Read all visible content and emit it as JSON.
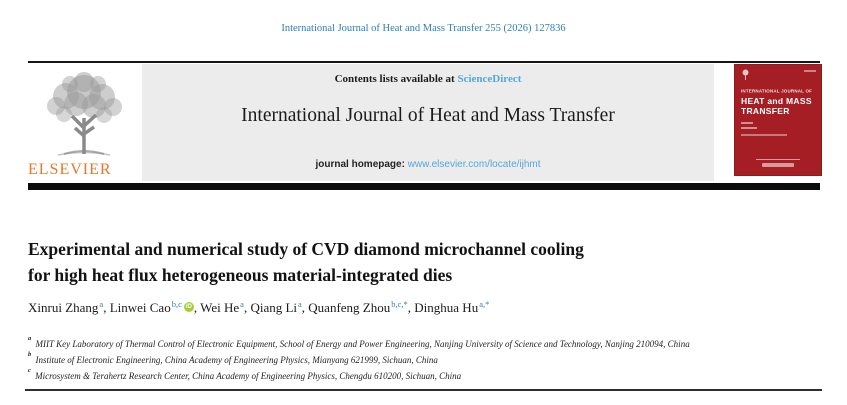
{
  "page": {
    "citation": "International Journal of Heat and Mass Transfer 255 (2026) 127836"
  },
  "banner": {
    "contents_prefix": "Contents lists available at ",
    "sciencedirect_label": "ScienceDirect",
    "journal_title": "International Journal of Heat and Mass Transfer",
    "homepage_label": "journal homepage: ",
    "homepage_url": "www.elsevier.com/locate/ijhmt",
    "publisher_wordmark": "ELSEVIER"
  },
  "cover": {
    "journal_line": "INTERNATIONAL JOURNAL OF",
    "title_line1": "HEAT and MASS",
    "title_line2": "TRANSFER"
  },
  "article": {
    "title_lines": [
      "Experimental and numerical study of CVD diamond microchannel cooling",
      "for high heat flux heterogeneous material-integrated dies"
    ],
    "author_separator": ", ",
    "authors": [
      {
        "name": "Xinrui Zhang",
        "sup": "a",
        "orcid": false
      },
      {
        "name": "Linwei Cao",
        "sup": "b,c",
        "orcid": true
      },
      {
        "name": "Wei He",
        "sup": "a",
        "orcid": false
      },
      {
        "name": "Qiang Li",
        "sup": "a",
        "orcid": false
      },
      {
        "name": "Quanfeng Zhou",
        "sup": "b,c,*",
        "orcid": false
      },
      {
        "name": "Dinghua Hu",
        "sup": "a,*",
        "orcid": false
      }
    ],
    "orcid_icon_label": "iD",
    "affiliations": [
      {
        "sup": "a",
        "text": "MIIT Key Laboratory of Thermal Control of Electronic Equipment, School of Energy and Power Engineering, Nanjing University of Science and Technology, Nanjing 210094, China"
      },
      {
        "sup": "b",
        "text": "Institute of Electronic Engineering, China Academy of Engineering Physics, Mianyang 621999, Sichuan, China"
      },
      {
        "sup": "c",
        "text": "Microsystem & Terahertz Research Center, China Academy of Engineering Physics, Chengdu 610200, Sichuan, China"
      }
    ]
  },
  "colors": {
    "link_blue": "#2e7ebc",
    "light_blue": "#54a7d9",
    "elsevier_orange": "#e8772c",
    "cover_red": "#a41e24",
    "orcid_green": "#a6ce39",
    "banner_gray": "#ececec"
  }
}
